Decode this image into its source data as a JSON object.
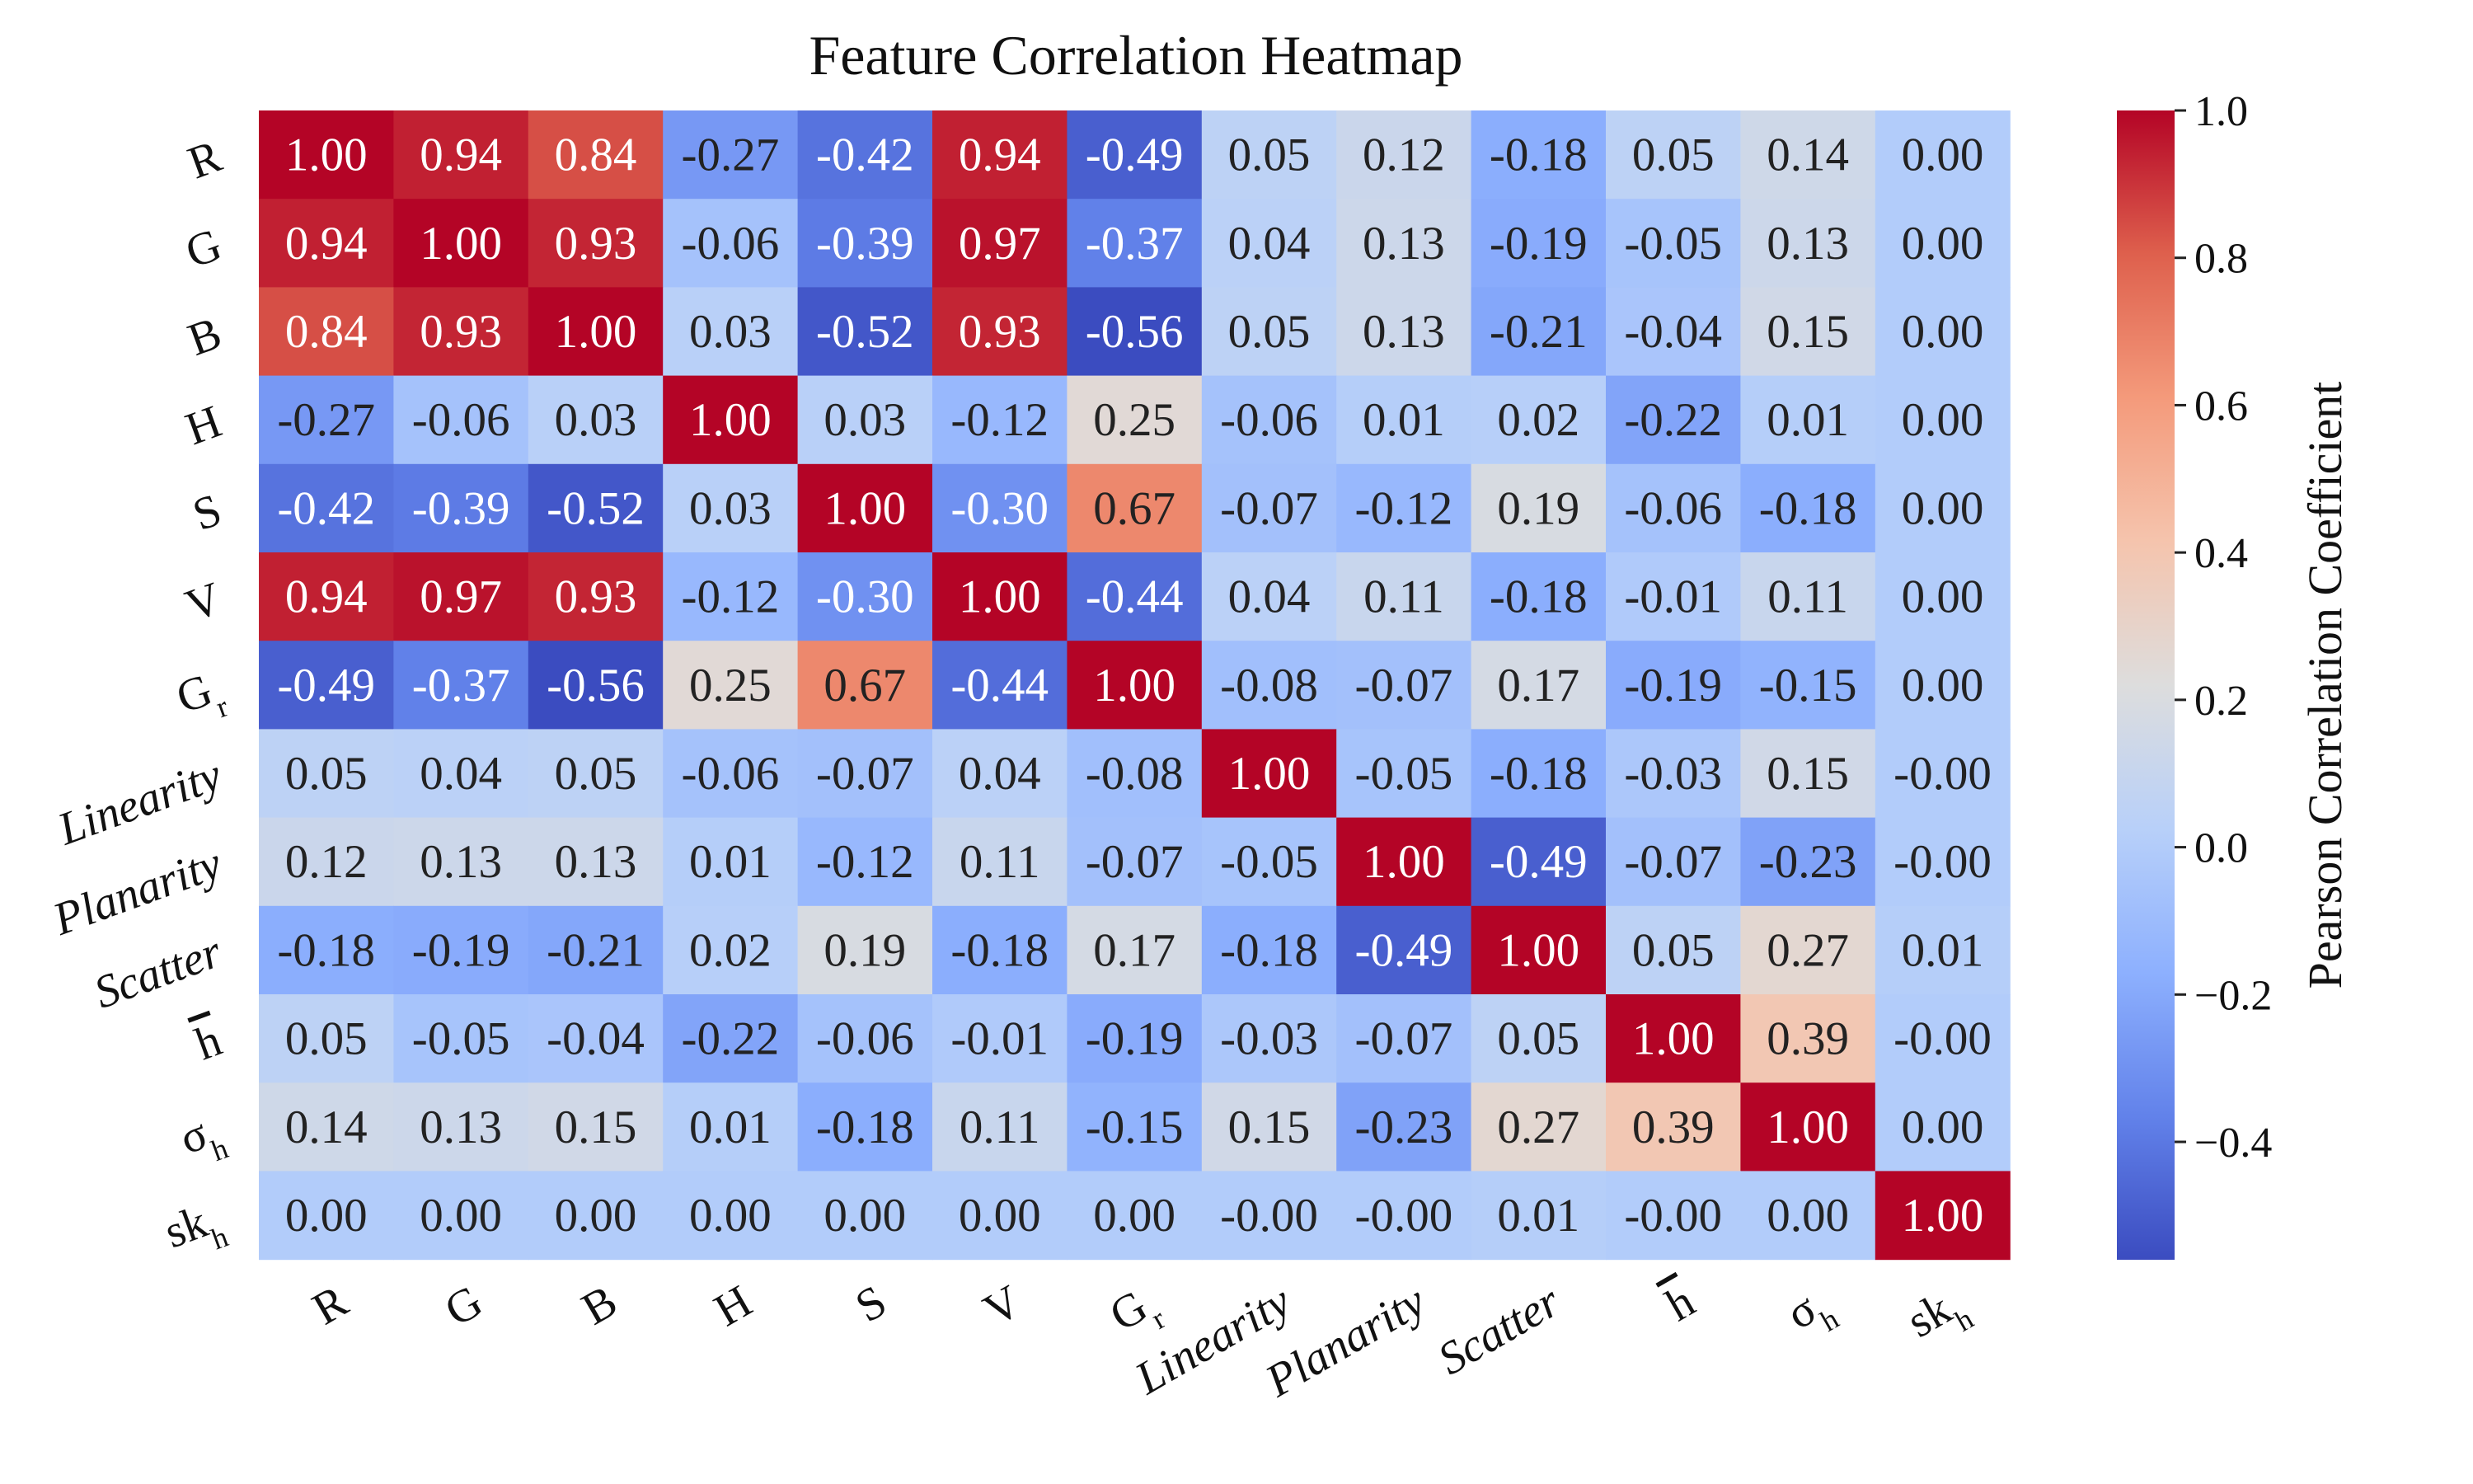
{
  "chart_data": {
    "type": "heatmap",
    "title": "Feature Correlation Heatmap",
    "row_labels": [
      {
        "base": "R"
      },
      {
        "base": "G"
      },
      {
        "base": "B"
      },
      {
        "base": "H"
      },
      {
        "base": "S"
      },
      {
        "base": "V"
      },
      {
        "base": "G",
        "sub": "r"
      },
      {
        "base": "Linearity",
        "italic": true
      },
      {
        "base": "Planarity",
        "italic": true
      },
      {
        "base": "Scatter",
        "italic": true
      },
      {
        "base": "h",
        "bar": true
      },
      {
        "base": "σ",
        "sub": "h"
      },
      {
        "base": "sk",
        "sub": "h"
      }
    ],
    "col_labels": [
      {
        "base": "R"
      },
      {
        "base": "G"
      },
      {
        "base": "B"
      },
      {
        "base": "H"
      },
      {
        "base": "S"
      },
      {
        "base": "V"
      },
      {
        "base": "G",
        "sub": "r"
      },
      {
        "base": "Linearity",
        "italic": true
      },
      {
        "base": "Planarity",
        "italic": true
      },
      {
        "base": "Scatter",
        "italic": true
      },
      {
        "base": "h",
        "bar": true
      },
      {
        "base": "σ",
        "sub": "h"
      },
      {
        "base": "sk",
        "sub": "h"
      }
    ],
    "values": [
      [
        "1.00",
        "0.94",
        "0.84",
        "-0.27",
        "-0.42",
        "0.94",
        "-0.49",
        "0.05",
        "0.12",
        "-0.18",
        "0.05",
        "0.14",
        "0.00"
      ],
      [
        "0.94",
        "1.00",
        "0.93",
        "-0.06",
        "-0.39",
        "0.97",
        "-0.37",
        "0.04",
        "0.13",
        "-0.19",
        "-0.05",
        "0.13",
        "0.00"
      ],
      [
        "0.84",
        "0.93",
        "1.00",
        "0.03",
        "-0.52",
        "0.93",
        "-0.56",
        "0.05",
        "0.13",
        "-0.21",
        "-0.04",
        "0.15",
        "0.00"
      ],
      [
        "-0.27",
        "-0.06",
        "0.03",
        "1.00",
        "0.03",
        "-0.12",
        "0.25",
        "-0.06",
        "0.01",
        "0.02",
        "-0.22",
        "0.01",
        "0.00"
      ],
      [
        "-0.42",
        "-0.39",
        "-0.52",
        "0.03",
        "1.00",
        "-0.30",
        "0.67",
        "-0.07",
        "-0.12",
        "0.19",
        "-0.06",
        "-0.18",
        "0.00"
      ],
      [
        "0.94",
        "0.97",
        "0.93",
        "-0.12",
        "-0.30",
        "1.00",
        "-0.44",
        "0.04",
        "0.11",
        "-0.18",
        "-0.01",
        "0.11",
        "0.00"
      ],
      [
        "-0.49",
        "-0.37",
        "-0.56",
        "0.25",
        "0.67",
        "-0.44",
        "1.00",
        "-0.08",
        "-0.07",
        "0.17",
        "-0.19",
        "-0.15",
        "0.00"
      ],
      [
        "0.05",
        "0.04",
        "0.05",
        "-0.06",
        "-0.07",
        "0.04",
        "-0.08",
        "1.00",
        "-0.05",
        "-0.18",
        "-0.03",
        "0.15",
        "-0.00"
      ],
      [
        "0.12",
        "0.13",
        "0.13",
        "0.01",
        "-0.12",
        "0.11",
        "-0.07",
        "-0.05",
        "1.00",
        "-0.49",
        "-0.07",
        "-0.23",
        "-0.00"
      ],
      [
        "-0.18",
        "-0.19",
        "-0.21",
        "0.02",
        "0.19",
        "-0.18",
        "0.17",
        "-0.18",
        "-0.49",
        "1.00",
        "0.05",
        "0.27",
        "0.01"
      ],
      [
        "0.05",
        "-0.05",
        "-0.04",
        "-0.22",
        "-0.06",
        "-0.01",
        "-0.19",
        "-0.03",
        "-0.07",
        "0.05",
        "1.00",
        "0.39",
        "-0.00"
      ],
      [
        "0.14",
        "0.13",
        "0.15",
        "0.01",
        "-0.18",
        "0.11",
        "-0.15",
        "0.15",
        "-0.23",
        "0.27",
        "0.39",
        "1.00",
        "0.00"
      ],
      [
        "0.00",
        "0.00",
        "0.00",
        "0.00",
        "0.00",
        "0.00",
        "0.00",
        "-0.00",
        "-0.00",
        "0.01",
        "-0.00",
        "0.00",
        "1.00"
      ]
    ],
    "colormap": "coolwarm",
    "vmin": -0.56,
    "vmax": 1.0,
    "colorbar": {
      "label": "Pearson Correlation Coefficient",
      "ticks": [
        1.0,
        0.8,
        0.6,
        0.4,
        0.2,
        0.0,
        -0.2,
        -0.4
      ],
      "tick_labels": [
        "1.0",
        "0.8",
        "0.6",
        "0.4",
        "0.2",
        "0.0",
        "−0.2",
        "−0.4"
      ]
    }
  }
}
